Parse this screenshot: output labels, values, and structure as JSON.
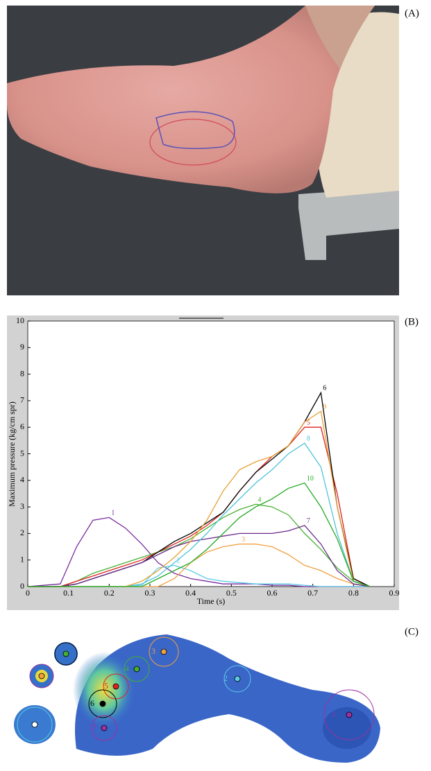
{
  "panels": {
    "a": "(A)",
    "b": "(B)",
    "c": "(C)"
  },
  "chart_data": {
    "type": "line",
    "xlabel": "Time (s)",
    "ylabel": "Maximum pressure (kg/cm spr)",
    "x": [
      0,
      0.08,
      0.12,
      0.16,
      0.2,
      0.24,
      0.28,
      0.32,
      0.36,
      0.4,
      0.44,
      0.48,
      0.52,
      0.56,
      0.6,
      0.64,
      0.68,
      0.72,
      0.76,
      0.8,
      0.84
    ],
    "xlim": [
      0,
      0.9
    ],
    "xticks": [
      0,
      0.1,
      0.2,
      0.3,
      0.4,
      0.5,
      0.6,
      0.7,
      0.8,
      0.9
    ],
    "ylim": [
      0,
      10
    ],
    "yticks": [
      0,
      1,
      2,
      3,
      4,
      5,
      6,
      7,
      8,
      9,
      10
    ],
    "grid": false,
    "series": [
      {
        "name": "1",
        "color": "#7a2aa0",
        "values": [
          0,
          0.1,
          1.5,
          2.5,
          2.6,
          2.2,
          1.6,
          0.9,
          0.5,
          0.3,
          0.2,
          0.1,
          0.1,
          0.1,
          0.05,
          0.05,
          0,
          0,
          0,
          0,
          0
        ]
      },
      {
        "name": "2",
        "color": "#5ccbe6",
        "values": [
          0,
          0,
          0,
          0,
          0,
          0,
          0.05,
          0.7,
          0.8,
          0.6,
          0.3,
          0.2,
          0.15,
          0.1,
          0.1,
          0.1,
          0.05,
          0,
          0,
          0,
          0
        ]
      },
      {
        "name": "3",
        "color": "#f0a040",
        "values": [
          0,
          0,
          0,
          0,
          0,
          0,
          0,
          0,
          0.3,
          0.9,
          1.3,
          1.5,
          1.6,
          1.6,
          1.5,
          1.2,
          0.8,
          0.6,
          0.3,
          0.1,
          0
        ]
      },
      {
        "name": "4",
        "color": "#44b030",
        "values": [
          0,
          0,
          0.2,
          0.5,
          0.7,
          0.9,
          1.1,
          1.3,
          1.5,
          1.8,
          2.2,
          2.6,
          2.9,
          3.1,
          3.0,
          2.7,
          2.0,
          1.4,
          0.7,
          0.2,
          0
        ]
      },
      {
        "name": "5",
        "color": "#e02020",
        "values": [
          0,
          0,
          0.2,
          0.4,
          0.6,
          0.8,
          1.0,
          1.3,
          1.6,
          1.9,
          2.3,
          2.8,
          3.6,
          4.3,
          4.9,
          5.3,
          6.0,
          6.0,
          3.5,
          0.3,
          0
        ]
      },
      {
        "name": "6",
        "color": "#000000",
        "values": [
          0,
          0,
          0.1,
          0.3,
          0.5,
          0.7,
          0.9,
          1.3,
          1.7,
          2.0,
          2.4,
          2.8,
          3.6,
          4.3,
          4.8,
          5.3,
          6.2,
          7.3,
          3.0,
          0.3,
          0
        ]
      },
      {
        "name": "7",
        "color": "#6a2a8a",
        "values": [
          0,
          0,
          0.1,
          0.3,
          0.5,
          0.7,
          0.9,
          1.2,
          1.5,
          1.7,
          1.8,
          1.9,
          2.0,
          2.0,
          2.0,
          2.1,
          2.3,
          1.6,
          0.6,
          0.1,
          0
        ]
      },
      {
        "name": "8",
        "color": "#4fc3d9",
        "values": [
          0,
          0,
          0,
          0,
          0,
          0,
          0.1,
          0.4,
          0.9,
          1.4,
          2.0,
          2.7,
          3.3,
          3.9,
          4.4,
          5.0,
          5.4,
          4.5,
          2.0,
          0.2,
          0
        ]
      },
      {
        "name": "9",
        "color": "#e8a030",
        "values": [
          0,
          0,
          0,
          0,
          0,
          0,
          0.2,
          0.6,
          1.1,
          1.7,
          2.5,
          3.6,
          4.4,
          4.7,
          4.9,
          5.3,
          6.2,
          6.6,
          3.0,
          0.2,
          0
        ]
      },
      {
        "name": "10",
        "color": "#22aa22",
        "values": [
          0,
          0,
          0,
          0,
          0,
          0,
          0,
          0.3,
          0.6,
          0.9,
          1.4,
          2.0,
          2.6,
          3.0,
          3.3,
          3.7,
          3.9,
          3.0,
          1.8,
          0.2,
          0
        ]
      }
    ]
  },
  "heatmap": {
    "regions": [
      "1",
      "2",
      "3",
      "4",
      "5",
      "6",
      "7"
    ]
  }
}
